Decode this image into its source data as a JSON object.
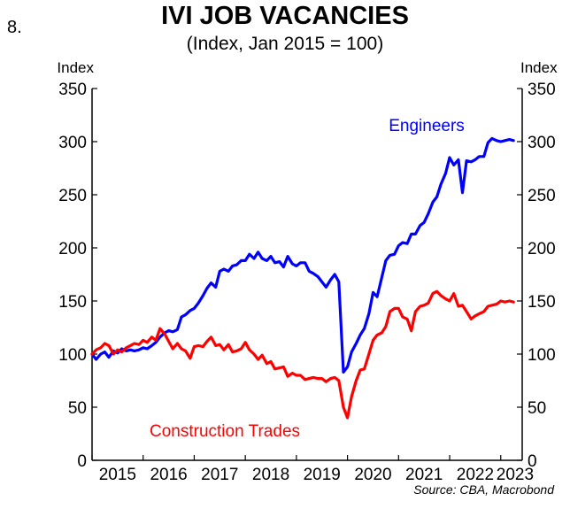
{
  "figure_number": "8.",
  "source": "Source: CBA, Macrobond",
  "chart_data": {
    "type": "line",
    "title": "IVI JOB VACANCIES",
    "subtitle": "(Index, Jan 2015 = 100)",
    "ylabel_left": "Index",
    "ylabel_right": "Index",
    "ylim": [
      0,
      350
    ],
    "yticks": [
      0,
      50,
      100,
      150,
      200,
      250,
      300,
      350
    ],
    "xticks": [
      "2015",
      "2016",
      "2017",
      "2018",
      "2019",
      "2020",
      "2021",
      "2022",
      "2023"
    ],
    "x_range": [
      2015.0,
      2023.42
    ],
    "grid": false,
    "series": [
      {
        "name": "Engineers",
        "color": "#0000ff",
        "x": [
          2015.0,
          2015.08,
          2015.17,
          2015.25,
          2015.33,
          2015.42,
          2015.5,
          2015.58,
          2015.67,
          2015.75,
          2015.83,
          2015.92,
          2016.0,
          2016.08,
          2016.17,
          2016.25,
          2016.33,
          2016.42,
          2016.5,
          2016.58,
          2016.67,
          2016.75,
          2016.83,
          2016.92,
          2017.0,
          2017.08,
          2017.17,
          2017.25,
          2017.33,
          2017.42,
          2017.5,
          2017.58,
          2017.67,
          2017.75,
          2017.83,
          2017.92,
          2018.0,
          2018.08,
          2018.17,
          2018.25,
          2018.33,
          2018.42,
          2018.5,
          2018.58,
          2018.67,
          2018.75,
          2018.83,
          2018.92,
          2019.0,
          2019.08,
          2019.17,
          2019.25,
          2019.33,
          2019.42,
          2019.5,
          2019.58,
          2019.67,
          2019.75,
          2019.83,
          2019.92,
          2020.0,
          2020.08,
          2020.17,
          2020.25,
          2020.33,
          2020.42,
          2020.5,
          2020.58,
          2020.67,
          2020.75,
          2020.83,
          2020.92,
          2021.0,
          2021.08,
          2021.17,
          2021.25,
          2021.33,
          2021.42,
          2021.5,
          2021.58,
          2021.67,
          2021.75,
          2021.83,
          2021.92,
          2022.0,
          2022.08,
          2022.17,
          2022.25,
          2022.33,
          2022.42,
          2022.5,
          2022.58,
          2022.67,
          2022.75,
          2022.83,
          2022.92,
          2023.0,
          2023.08,
          2023.17,
          2023.25
        ],
        "values": [
          100,
          95,
          100,
          102,
          97,
          103,
          101,
          105,
          103,
          104,
          103,
          104,
          106,
          105,
          108,
          111,
          116,
          120,
          122,
          121,
          123,
          135,
          137,
          141,
          143,
          148,
          155,
          162,
          167,
          163,
          178,
          180,
          178,
          183,
          184,
          188,
          188,
          194,
          190,
          196,
          190,
          188,
          192,
          186,
          187,
          182,
          192,
          185,
          183,
          186,
          186,
          178,
          176,
          173,
          168,
          163,
          170,
          175,
          168,
          83,
          88,
          102,
          110,
          118,
          124,
          138,
          158,
          154,
          172,
          188,
          193,
          194,
          202,
          205,
          204,
          213,
          213,
          221,
          224,
          232,
          243,
          248,
          260,
          270,
          285,
          278,
          283,
          252,
          282,
          281,
          283,
          286,
          286,
          299,
          303,
          301,
          300,
          301,
          302,
          301
        ]
      },
      {
        "name": "Construction Trades",
        "color": "#ff0000",
        "x": [
          2015.0,
          2015.08,
          2015.17,
          2015.25,
          2015.33,
          2015.42,
          2015.5,
          2015.58,
          2015.67,
          2015.75,
          2015.83,
          2015.92,
          2016.0,
          2016.08,
          2016.17,
          2016.25,
          2016.33,
          2016.42,
          2016.5,
          2016.58,
          2016.67,
          2016.75,
          2016.83,
          2016.92,
          2017.0,
          2017.08,
          2017.17,
          2017.25,
          2017.33,
          2017.42,
          2017.5,
          2017.58,
          2017.67,
          2017.75,
          2017.83,
          2017.92,
          2018.0,
          2018.08,
          2018.17,
          2018.25,
          2018.33,
          2018.42,
          2018.5,
          2018.58,
          2018.67,
          2018.75,
          2018.83,
          2018.92,
          2019.0,
          2019.08,
          2019.17,
          2019.25,
          2019.33,
          2019.42,
          2019.5,
          2019.58,
          2019.67,
          2019.75,
          2019.83,
          2019.92,
          2020.0,
          2020.08,
          2020.17,
          2020.25,
          2020.33,
          2020.42,
          2020.5,
          2020.58,
          2020.67,
          2020.75,
          2020.83,
          2020.92,
          2021.0,
          2021.08,
          2021.17,
          2021.25,
          2021.33,
          2021.42,
          2021.5,
          2021.58,
          2021.67,
          2021.75,
          2021.83,
          2021.92,
          2022.0,
          2022.08,
          2022.17,
          2022.25,
          2022.33,
          2022.42,
          2022.5,
          2022.58,
          2022.67,
          2022.75,
          2022.83,
          2022.92,
          2023.0,
          2023.08,
          2023.17,
          2023.25
        ],
        "values": [
          100,
          104,
          106,
          110,
          108,
          100,
          104,
          102,
          106,
          108,
          110,
          109,
          113,
          111,
          116,
          113,
          124,
          119,
          112,
          105,
          110,
          105,
          103,
          96,
          107,
          108,
          107,
          112,
          116,
          108,
          109,
          104,
          109,
          102,
          103,
          105,
          111,
          104,
          100,
          95,
          99,
          91,
          93,
          86,
          87,
          88,
          79,
          82,
          80,
          80,
          76,
          77,
          78,
          77,
          77,
          74,
          77,
          78,
          75,
          50,
          40,
          60,
          75,
          85,
          86,
          100,
          113,
          118,
          120,
          126,
          140,
          143,
          143,
          135,
          133,
          122,
          140,
          145,
          146,
          148,
          157,
          159,
          155,
          152,
          150,
          157,
          145,
          146,
          140,
          133,
          136,
          138,
          140,
          145,
          146,
          147,
          150,
          149,
          150,
          149
        ]
      }
    ]
  }
}
